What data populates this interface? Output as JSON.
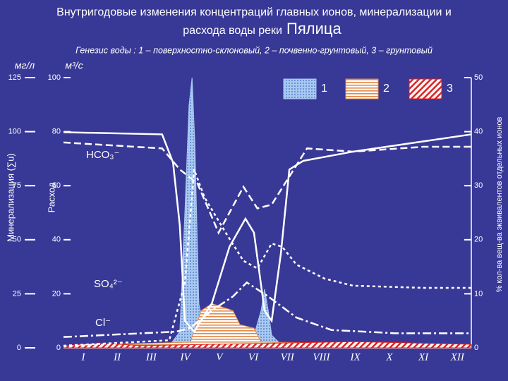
{
  "chart_data": {
    "type": "line",
    "title": "Внутригодовые изменения концентраций главных ионов, минерализации и",
    "title_2": "расхода воды реки",
    "river": "Пялица",
    "subtitle": "Генезис воды : 1 – поверхностно-склоновый, 2 – почвенно-грунтовый, 3 – грунтовый",
    "y_unit": "мг/л",
    "y2_unit": "м³/с",
    "y_label": "Минерализация (∑u)",
    "y2_label": "Расход",
    "y3_label": "% кол-ва вещ-ва эквивалентов отдельных ионов",
    "annotations": [
      "HCO₃⁻",
      "SO₄²⁻",
      "Cl⁻"
    ],
    "xlim": [
      0.42,
      12.41
    ],
    "xticks": [
      {
        "value": 1,
        "label": "I"
      },
      {
        "value": 2,
        "label": "II"
      },
      {
        "value": 3,
        "label": "III"
      },
      {
        "value": 4,
        "label": "IV"
      },
      {
        "value": 5,
        "label": "V"
      },
      {
        "value": 6,
        "label": "VI"
      },
      {
        "value": 7,
        "label": "VII"
      },
      {
        "value": 8,
        "label": "VIII"
      },
      {
        "value": 9,
        "label": "IX"
      },
      {
        "value": 10,
        "label": "X"
      },
      {
        "value": 11,
        "label": "XI"
      },
      {
        "value": 12,
        "label": "XII"
      }
    ],
    "ylim": [
      0,
      125
    ],
    "yticks": [
      0,
      25,
      50,
      75,
      100,
      125
    ],
    "y2lim": [
      0,
      100
    ],
    "y2ticks": [
      0,
      20,
      40,
      60,
      80,
      100
    ],
    "y3lim": [
      0,
      50
    ],
    "y3ticks": [
      0,
      10,
      20,
      30,
      40,
      50
    ],
    "areas": [
      {
        "name": "1",
        "color": "#a9c9f2",
        "fill": "dots",
        "axis": "y2",
        "x": [
          3.49,
          3.84,
          3.99,
          4.11,
          4.2,
          4.28,
          4.4,
          4.57,
          4.74,
          5.4,
          6.02,
          6.23,
          6.33,
          6.44,
          6.54,
          6.85,
          12.41
        ],
        "values": [
          0,
          6,
          50.4,
          89.6,
          100,
          76.2,
          16.2,
          6,
          3.4,
          3.9,
          4.7,
          13.8,
          21.7,
          13.8,
          4.7,
          0.8,
          0.3
        ]
      },
      {
        "name": "2",
        "color": "#e08a4a",
        "fill": "hstripes",
        "axis": "y2",
        "x": [
          0.42,
          4.15,
          4.47,
          4.78,
          5.4,
          5.61,
          6.02,
          6.23,
          12.41
        ],
        "values": [
          0.8,
          2.1,
          13.8,
          16.4,
          13.8,
          8.6,
          7.3,
          2.1,
          1.3
        ]
      },
      {
        "name": "3",
        "color": "#e02020",
        "fill": "hatch",
        "axis": "y2",
        "x": [
          0.42,
          1.46,
          2.7,
          4.78,
          8.93,
          12.41
        ],
        "values": [
          0.8,
          1.8,
          0.8,
          1.3,
          2.3,
          1.3
        ]
      }
    ],
    "series": [
      {
        "color": "#ffffff",
        "dash": "solid",
        "axis": "y3",
        "x": [
          0.42,
          3.32,
          3.64,
          3.84,
          3.99,
          4.26,
          4.78,
          5.3,
          5.77,
          6.02,
          6.33,
          6.54,
          6.81,
          7.06,
          7.47,
          8.93,
          11.0,
          12.41
        ],
        "values": [
          39.9,
          39.5,
          34.3,
          22.6,
          5,
          3,
          8.2,
          18.7,
          23.9,
          21.3,
          6.9,
          5,
          17.4,
          33,
          34.6,
          36.3,
          38.2,
          39.5
        ]
      },
      {
        "color": "#ffffff",
        "dash": "dash",
        "axis": "y3",
        "x": [
          0.42,
          3.32,
          3.84,
          4.36,
          4.98,
          5.71,
          6.12,
          6.54,
          7.06,
          7.58,
          8.93,
          11.0,
          12.41
        ],
        "values": [
          38,
          36.9,
          33,
          30.4,
          21.3,
          29.8,
          25.8,
          26.5,
          31.7,
          36.9,
          36.3,
          37.2,
          37.2
        ]
      },
      {
        "color": "#ffffff",
        "dash": "shortdash",
        "axis": "y3",
        "x": [
          0.42,
          3.53,
          3.99,
          4.26,
          4.57,
          5.19,
          5.71,
          6.12,
          6.54,
          6.85,
          7.27,
          8.1,
          8.93,
          11.0,
          12.41
        ],
        "values": [
          0.4,
          1.4,
          12.1,
          33,
          27.8,
          21.3,
          16.1,
          14.7,
          19.3,
          18.7,
          15.4,
          12.8,
          11.5,
          11.1,
          11.1
        ]
      },
      {
        "color": "#ffffff",
        "dash": "dashdot",
        "axis": "y3",
        "x": [
          0.42,
          3.74,
          4.15,
          4.78,
          5.4,
          5.81,
          6.44,
          7.27,
          8.3,
          10.17,
          12.41
        ],
        "values": [
          2,
          3,
          3.7,
          6.9,
          9.5,
          12.1,
          9.5,
          5.6,
          3.3,
          2.7,
          2.7
        ]
      }
    ]
  }
}
